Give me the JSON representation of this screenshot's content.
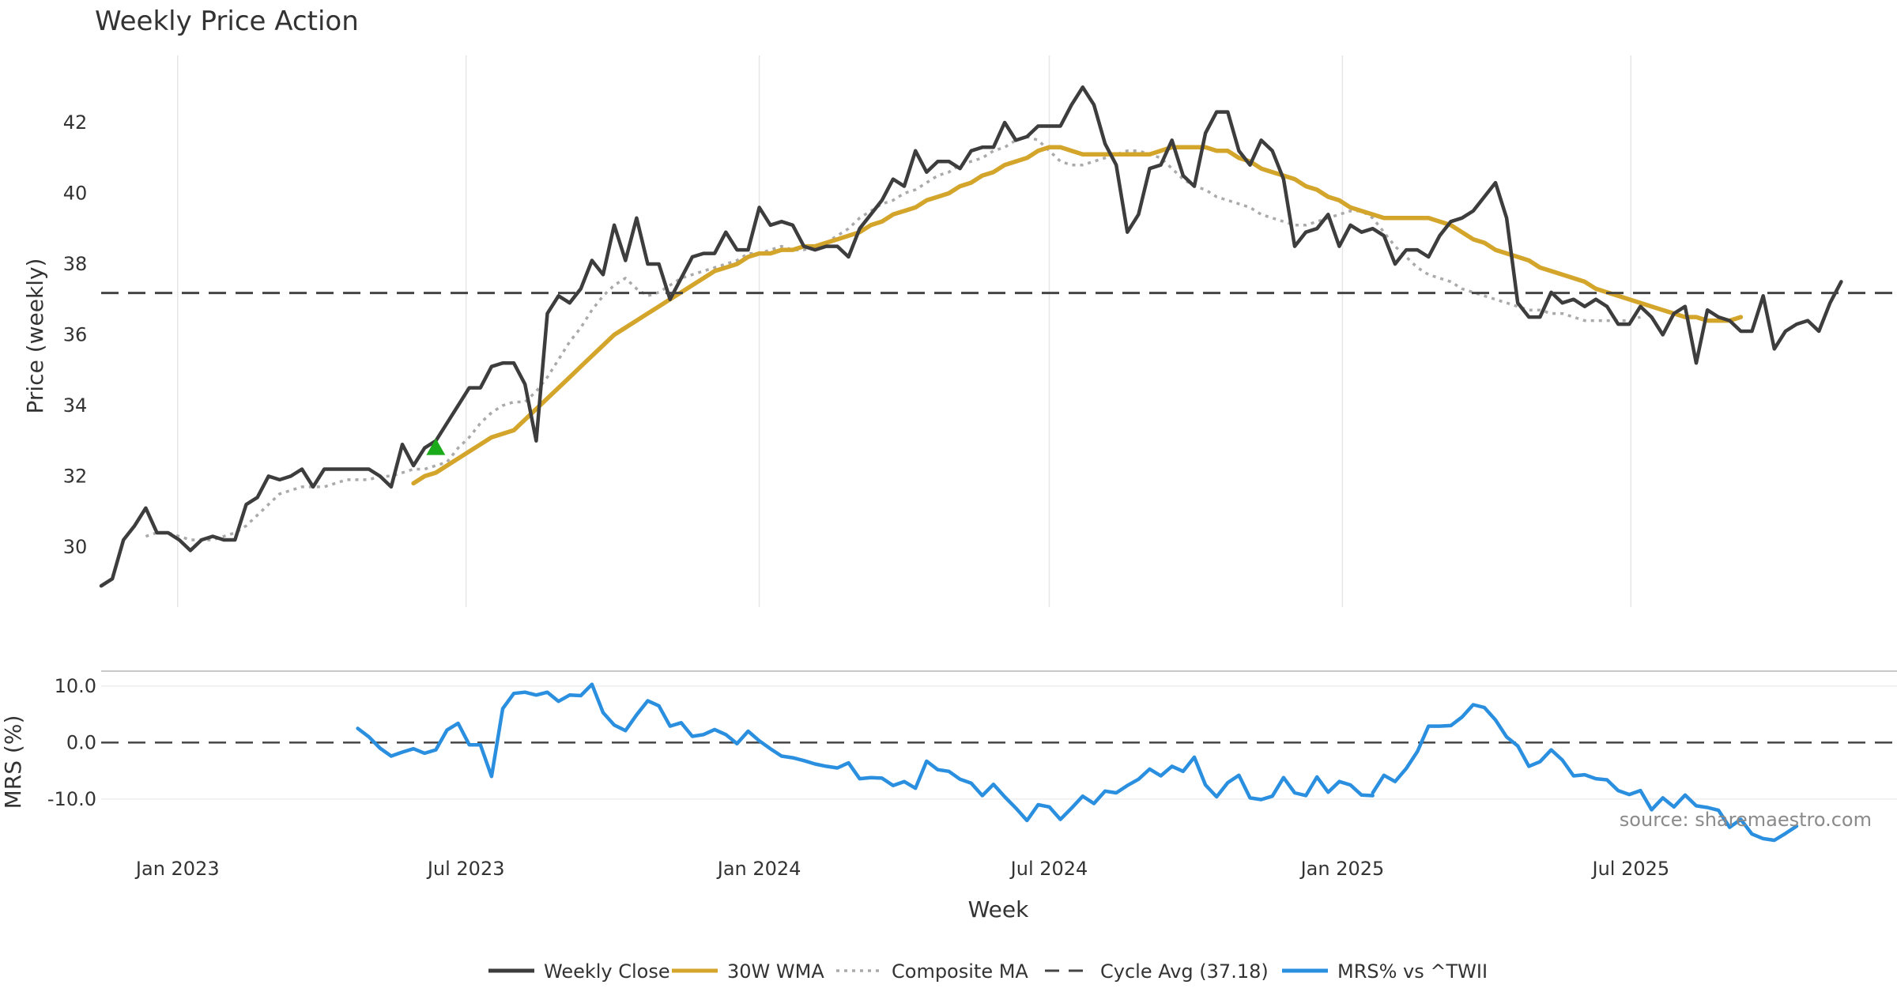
{
  "chart_data": {
    "type": "line",
    "title": "Weekly Price Action",
    "xlabel": "Week",
    "source": "source: sharemaestro.com",
    "x_start": "2022-11-14",
    "x_end": "2025-12-15",
    "x_tick_labels": [
      {
        "date": "2023-01-01",
        "label": "Jan 2023"
      },
      {
        "date": "2023-07-01",
        "label": "Jul 2023"
      },
      {
        "date": "2024-01-01",
        "label": "Jan 2024"
      },
      {
        "date": "2024-07-01",
        "label": "Jul 2024"
      },
      {
        "date": "2025-01-01",
        "label": "Jan 2025"
      },
      {
        "date": "2025-07-01",
        "label": "Jul 2025"
      }
    ],
    "price_panel": {
      "ylabel": "Price (weekly)",
      "ylim": [
        28.3,
        43.9
      ],
      "yticks": [
        30,
        32,
        34,
        36,
        38,
        40,
        42
      ],
      "grid": "vertical",
      "cycle_avg": 37.18,
      "buy_signal": {
        "date": "2023-06-12",
        "value": 32.8,
        "color": "#1aaa1a"
      }
    },
    "mrs_panel": {
      "ylabel": "MRS (%)",
      "ylim": [
        -18.0,
        12.5
      ],
      "yticks": [
        10.0,
        0.0,
        -10.0
      ],
      "ytick_labels": [
        "10.0",
        "0.0",
        "-10.0"
      ],
      "zero_line": 0.0
    },
    "series": [
      {
        "name": "Weekly Close",
        "color": "#3d3d3d",
        "style": "solid",
        "panel": "price",
        "x_start": "2022-11-14",
        "values": [
          28.9,
          29.1,
          30.2,
          30.6,
          31.1,
          30.4,
          30.4,
          30.2,
          29.9,
          30.2,
          30.3,
          30.2,
          30.2,
          31.2,
          31.4,
          32.0,
          31.9,
          32.0,
          32.2,
          31.7,
          32.2,
          32.2,
          32.2,
          32.2,
          32.2,
          32.0,
          31.7,
          32.9,
          32.3,
          32.8,
          33.0,
          33.5,
          34.0,
          34.5,
          34.5,
          35.1,
          35.2,
          35.2,
          34.6,
          33.0,
          36.6,
          37.1,
          36.9,
          37.3,
          38.1,
          37.7,
          39.1,
          38.1,
          39.3,
          38.0,
          38.0,
          37.0,
          37.6,
          38.2,
          38.3,
          38.3,
          38.9,
          38.4,
          38.4,
          39.6,
          39.1,
          39.2,
          39.1,
          38.5,
          38.4,
          38.5,
          38.5,
          38.2,
          39.0,
          39.4,
          39.8,
          40.4,
          40.2,
          41.2,
          40.6,
          40.9,
          40.9,
          40.7,
          41.2,
          41.3,
          41.3,
          42.0,
          41.5,
          41.6,
          41.9,
          41.9,
          41.9,
          42.5,
          43.0,
          42.5,
          41.4,
          40.8,
          38.9,
          39.4,
          40.7,
          40.8,
          41.5,
          40.5,
          40.2,
          41.7,
          42.3,
          42.3,
          41.2,
          40.8,
          41.5,
          41.2,
          40.4,
          38.5,
          38.9,
          39.0,
          39.4,
          38.5,
          39.1,
          38.9,
          39.0,
          38.8,
          38.0,
          38.4,
          38.4,
          38.2,
          38.8,
          39.2,
          39.3,
          39.5,
          39.9,
          40.3,
          39.3,
          36.9,
          36.5,
          36.5,
          37.2,
          36.9,
          37.0,
          36.8,
          37.0,
          36.8,
          36.3,
          36.3,
          36.8,
          36.5,
          36.0,
          36.6,
          36.8,
          35.2,
          36.7,
          36.5,
          36.4,
          36.1,
          36.1,
          37.1,
          35.6,
          36.1,
          36.3,
          36.4,
          36.1,
          36.9,
          37.5
        ]
      },
      {
        "name": "30W WMA",
        "color": "#d4a52b",
        "style": "solid",
        "panel": "price",
        "x_start": "2023-05-29",
        "values": [
          31.8,
          32.0,
          32.1,
          32.3,
          32.5,
          32.7,
          32.9,
          33.1,
          33.2,
          33.3,
          33.6,
          33.9,
          34.2,
          34.5,
          34.8,
          35.1,
          35.4,
          35.7,
          36.0,
          36.2,
          36.4,
          36.6,
          36.8,
          37.0,
          37.2,
          37.4,
          37.6,
          37.8,
          37.9,
          38.0,
          38.2,
          38.3,
          38.3,
          38.4,
          38.4,
          38.5,
          38.5,
          38.6,
          38.7,
          38.8,
          38.9,
          39.1,
          39.2,
          39.4,
          39.5,
          39.6,
          39.8,
          39.9,
          40.0,
          40.2,
          40.3,
          40.5,
          40.6,
          40.8,
          40.9,
          41.0,
          41.2,
          41.3,
          41.3,
          41.2,
          41.1,
          41.1,
          41.1,
          41.1,
          41.1,
          41.1,
          41.1,
          41.2,
          41.3,
          41.3,
          41.3,
          41.3,
          41.2,
          41.2,
          41.0,
          40.9,
          40.7,
          40.6,
          40.5,
          40.4,
          40.2,
          40.1,
          39.9,
          39.8,
          39.6,
          39.5,
          39.4,
          39.3,
          39.3,
          39.3,
          39.3,
          39.3,
          39.2,
          39.1,
          38.9,
          38.7,
          38.6,
          38.4,
          38.3,
          38.2,
          38.1,
          37.9,
          37.8,
          37.7,
          37.6,
          37.5,
          37.3,
          37.2,
          37.1,
          37.0,
          36.9,
          36.8,
          36.7,
          36.6,
          36.5,
          36.5,
          36.4,
          36.4,
          36.4,
          36.5
        ]
      },
      {
        "name": "Composite MA",
        "color": "#aaaaaa",
        "style": "dotted",
        "panel": "price",
        "x_start": "2022-12-12",
        "values": [
          30.3,
          30.4,
          30.4,
          30.3,
          30.2,
          30.2,
          30.2,
          30.3,
          30.4,
          30.6,
          30.9,
          31.2,
          31.5,
          31.6,
          31.7,
          31.7,
          31.7,
          31.8,
          31.9,
          31.9,
          31.9,
          32.0,
          32.0,
          32.1,
          32.2,
          32.2,
          32.3,
          32.4,
          32.8,
          33.1,
          33.5,
          33.8,
          34.0,
          34.1,
          34.1,
          34.4,
          34.8,
          35.3,
          35.8,
          36.2,
          36.7,
          37.1,
          37.4,
          37.6,
          37.3,
          37.1,
          37.2,
          37.4,
          37.6,
          37.7,
          37.8,
          37.9,
          38.0,
          38.1,
          38.3,
          38.3,
          38.4,
          38.5,
          38.4,
          38.4,
          38.5,
          38.6,
          38.8,
          39.0,
          39.3,
          39.5,
          39.7,
          39.8,
          40.0,
          40.1,
          40.3,
          40.5,
          40.6,
          40.8,
          40.9,
          41.0,
          41.2,
          41.3,
          41.5,
          41.6,
          41.5,
          41.2,
          40.9,
          40.8,
          40.8,
          40.9,
          41.0,
          41.1,
          41.2,
          41.2,
          41.1,
          41.0,
          40.7,
          40.4,
          40.2,
          40.1,
          39.9,
          39.8,
          39.7,
          39.6,
          39.4,
          39.3,
          39.2,
          39.1,
          39.1,
          39.2,
          39.3,
          39.4,
          39.5,
          39.5,
          39.3,
          38.9,
          38.5,
          38.2,
          37.9,
          37.7,
          37.6,
          37.5,
          37.3,
          37.2,
          37.1,
          37.0,
          36.9,
          36.8,
          36.7,
          36.7,
          36.6,
          36.6,
          36.5,
          36.4,
          36.4,
          36.4,
          36.4,
          36.4,
          36.5
        ]
      },
      {
        "name": "Cycle Avg (37.18)",
        "color": "#444444",
        "style": "dashed",
        "panel": "price",
        "value": 37.18
      },
      {
        "name": "MRS% vs ^TWII",
        "color": "#2b8fe0",
        "style": "solid",
        "panel": "mrs",
        "segments": [
          {
            "x_start": "2023-04-24",
            "values": [
              2.5,
              1.0,
              -1.0,
              -2.4,
              -1.7,
              -1.1,
              -1.9,
              -1.3,
              2.2,
              3.4,
              -0.4,
              -0.4,
              -6.0,
              6.0,
              8.7,
              8.9,
              8.4,
              8.9,
              7.3,
              8.4,
              8.3,
              10.3,
              5.3,
              3.1,
              2.1,
              4.9,
              7.4,
              6.5,
              2.9,
              3.5,
              1.1,
              1.4,
              2.3,
              1.4,
              -0.2,
              2.0,
              0.3,
              -1.1,
              -2.4,
              -2.7,
              -3.2,
              -3.8,
              -4.2,
              -4.5,
              -3.6,
              -6.4,
              -6.2,
              -6.3,
              -7.6,
              -6.9,
              -8.1,
              -3.3,
              -4.8,
              -5.1,
              -6.5,
              -7.2,
              -9.4,
              -7.4,
              -9.6,
              -11.6,
              -13.8,
              -11.0,
              -11.4,
              -13.6,
              -11.6,
              -9.5,
              -10.8,
              -8.6,
              -8.9,
              -7.6,
              -6.5,
              -4.7,
              -5.9,
              -4.2,
              -5.1,
              -2.6,
              -7.5,
              -9.6,
              -7.1,
              -5.8,
              -9.8,
              -10.1,
              -9.5,
              -6.2,
              -8.9,
              -9.4,
              -6.1,
              -8.8,
              -6.9,
              -7.5,
              -9.3,
              -9.4
            ]
          },
          {
            "x_start": "2025-01-20",
            "values": [
              -8.9,
              -5.8,
              -6.9,
              -4.6,
              -1.6,
              2.9,
              2.9,
              3.0,
              4.5,
              6.7,
              6.2,
              4.0,
              1.0,
              -0.6,
              -4.2,
              -3.4,
              -1.3,
              -3.1,
              -5.9,
              -5.7,
              -6.4,
              -6.6,
              -8.5,
              -9.2,
              -8.5,
              -11.9,
              -9.8,
              -11.4,
              -9.3,
              -11.2,
              -11.5,
              -12.0,
              -15.0,
              -13.6,
              -16.2,
              -17.0,
              -17.3,
              -16.1,
              -14.8
            ]
          }
        ]
      }
    ],
    "legend": {
      "placement": "bottom-center",
      "entries": [
        {
          "label": "Weekly Close",
          "color": "#3d3d3d",
          "style": "solid"
        },
        {
          "label": "30W WMA",
          "color": "#d4a52b",
          "style": "solid"
        },
        {
          "label": "Composite MA",
          "color": "#aaaaaa",
          "style": "dotted"
        },
        {
          "label": "Cycle Avg (37.18)",
          "color": "#444444",
          "style": "dashed"
        },
        {
          "label": "MRS% vs ^TWII",
          "color": "#2b8fe0",
          "style": "solid"
        }
      ]
    }
  }
}
